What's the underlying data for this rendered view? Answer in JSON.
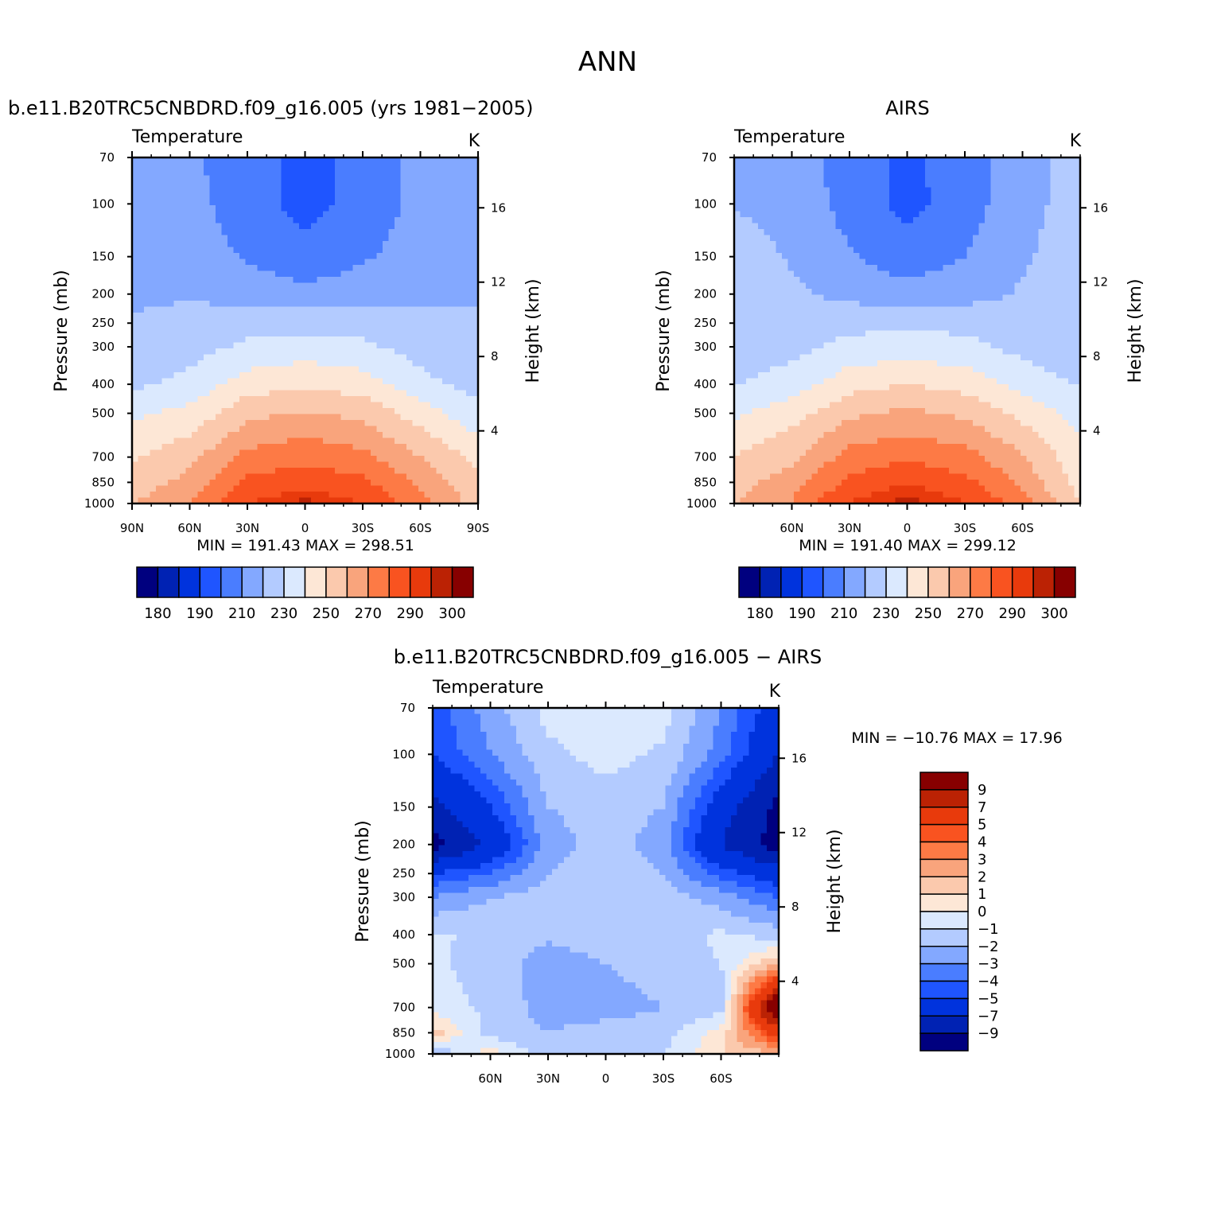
{
  "figure": {
    "title": "ANN"
  },
  "panels": [
    {
      "id": "model",
      "subtitle": "b.e11.B20TRC5CNBDRD.f09_g16.005 (yrs 1981−2005)",
      "variable": "Temperature",
      "units": "K",
      "ylabel": "Pressure (mb)",
      "y2label": "Height (km)",
      "xticks": [
        "90N",
        "60N",
        "30N",
        "0",
        "30S",
        "60S",
        "90S"
      ],
      "pticks": [
        "70",
        "100",
        "150",
        "200",
        "250",
        "300",
        "400",
        "500",
        "700",
        "850",
        "1000"
      ],
      "hticks": [
        "16",
        "12",
        "8",
        "4"
      ],
      "stats": "MIN = 191.43 MAX = 298.51",
      "colorbar_labels": [
        "180",
        "190",
        "210",
        "230",
        "250",
        "270",
        "290",
        "300"
      ]
    },
    {
      "id": "obs",
      "subtitle": "AIRS",
      "variable": "Temperature",
      "units": "K",
      "ylabel": "Pressure (mb)",
      "y2label": "Height (km)",
      "xticks": [
        "60N",
        "30N",
        "0",
        "30S",
        "60S"
      ],
      "pticks": [
        "70",
        "100",
        "150",
        "200",
        "250",
        "300",
        "400",
        "500",
        "700",
        "850",
        "1000"
      ],
      "hticks": [
        "16",
        "12",
        "8",
        "4"
      ],
      "stats": "MIN = 191.40 MAX = 299.12",
      "colorbar_labels": [
        "180",
        "190",
        "210",
        "230",
        "250",
        "270",
        "290",
        "300"
      ]
    },
    {
      "id": "diff",
      "subtitle": "b.e11.B20TRC5CNBDRD.f09_g16.005 − AIRS",
      "variable": "Temperature",
      "units": "K",
      "ylabel": "Pressure (mb)",
      "y2label": "Height (km)",
      "xticks": [
        "60N",
        "30N",
        "0",
        "30S",
        "60S"
      ],
      "pticks": [
        "70",
        "100",
        "150",
        "200",
        "250",
        "300",
        "400",
        "500",
        "700",
        "850",
        "1000"
      ],
      "hticks": [
        "16",
        "12",
        "8",
        "4"
      ],
      "stats": "MIN = −10.76 MAX = 17.96",
      "colorbar_labels": [
        "9",
        "7",
        "5",
        "4",
        "3",
        "2",
        "1",
        "0",
        "−1",
        "−2",
        "−3",
        "−4",
        "−5",
        "−7",
        "−9"
      ]
    }
  ],
  "colors": {
    "abs_scale": [
      "#00007f",
      "#0022b3",
      "#0033dd",
      "#1f55ff",
      "#4a7dff",
      "#83a8ff",
      "#b3cbff",
      "#dbe9fe",
      "#fde7d6",
      "#fbc9ad",
      "#f9a47c",
      "#fd7a45",
      "#f95320",
      "#e83a0c",
      "#bb2204",
      "#870000"
    ],
    "diff_scale": [
      "#870000",
      "#bb2204",
      "#e83a0c",
      "#f95320",
      "#fd7a45",
      "#f9a47c",
      "#fbc9ad",
      "#fde7d6",
      "#dbe9fe",
      "#b3cbff",
      "#83a8ff",
      "#4a7dff",
      "#1f55ff",
      "#0033dd",
      "#0022b3",
      "#00007f"
    ]
  },
  "chart_data": [
    {
      "type": "heatmap",
      "title": "b.e11.B20TRC5CNBDRD.f09_g16.005 (yrs 1981−2005)",
      "variable": "Temperature",
      "units": "K",
      "x_axis": "latitude, 90N to 90S",
      "y_axis": "pressure (mb), log scale, 70 to 1000",
      "y2_axis": "height (km)",
      "min": 191.43,
      "max": 298.51,
      "contour_levels": [
        180,
        185,
        190,
        200,
        210,
        220,
        230,
        240,
        250,
        260,
        270,
        280,
        290,
        295,
        300
      ],
      "lat": [
        90,
        60,
        30,
        0,
        -30,
        -60,
        -90
      ],
      "pressure": [
        70,
        100,
        150,
        200,
        250,
        300,
        400,
        500,
        700,
        850,
        1000
      ],
      "values": [
        [
          215,
          212,
          204,
          197,
          203,
          213,
          218
        ],
        [
          215,
          213,
          205,
          196,
          204,
          213,
          218
        ],
        [
          217,
          215,
          209,
          203,
          209,
          214,
          219
        ],
        [
          218,
          219,
          216,
          213,
          215,
          217,
          220
        ],
        [
          221,
          223,
          226,
          227,
          226,
          223,
          220
        ],
        [
          223,
          226,
          232,
          234,
          232,
          226,
          221
        ],
        [
          228,
          233,
          245,
          249,
          245,
          233,
          226
        ],
        [
          238,
          243,
          257,
          261,
          257,
          245,
          233
        ],
        [
          249,
          257,
          273,
          277,
          273,
          260,
          247
        ],
        [
          255,
          263,
          282,
          287,
          282,
          268,
          252
        ],
        [
          259,
          270,
          290,
          297,
          290,
          274,
          255
        ]
      ]
    },
    {
      "type": "heatmap",
      "title": "AIRS",
      "variable": "Temperature",
      "units": "K",
      "x_axis": "latitude, 90N to 90S",
      "y_axis": "pressure (mb), log scale, 70 to 1000",
      "y2_axis": "height (km)",
      "min": 191.4,
      "max": 299.12,
      "contour_levels": [
        180,
        185,
        190,
        200,
        210,
        220,
        230,
        240,
        250,
        260,
        270,
        280,
        290,
        295,
        300
      ],
      "lat": [
        90,
        60,
        30,
        0,
        -30,
        -60,
        -90
      ],
      "pressure": [
        70,
        100,
        150,
        200,
        250,
        300,
        400,
        500,
        700,
        850,
        1000
      ],
      "values": [
        [
          218,
          216,
          205,
          198,
          204,
          216,
          224
        ],
        [
          219,
          217,
          206,
          197,
          205,
          217,
          224
        ],
        [
          225,
          219,
          211,
          204,
          210,
          219,
          224
        ],
        [
          226,
          222,
          217,
          214,
          216,
          221,
          222
        ],
        [
          223,
          224,
          227,
          228,
          227,
          223,
          221
        ],
        [
          223,
          227,
          233,
          235,
          233,
          227,
          223
        ],
        [
          229,
          235,
          246,
          250,
          246,
          236,
          229
        ],
        [
          238,
          246,
          258,
          262,
          258,
          247,
          236
        ],
        [
          250,
          258,
          274,
          278,
          274,
          261,
          243
        ],
        [
          256,
          265,
          283,
          289,
          283,
          267,
          246
        ],
        [
          260,
          271,
          291,
          298,
          291,
          275,
          250
        ]
      ]
    },
    {
      "type": "heatmap",
      "title": "b.e11.B20TRC5CNBDRD.f09_g16.005 − AIRS",
      "variable": "Temperature",
      "units": "K",
      "x_axis": "latitude, 90N to 90S",
      "y_axis": "pressure (mb), log scale, 70 to 1000",
      "y2_axis": "height (km)",
      "min": -10.76,
      "max": 17.96,
      "contour_levels": [
        -9,
        -7,
        -5,
        -4,
        -3,
        -2,
        -1,
        0,
        1,
        2,
        3,
        4,
        5,
        7,
        9
      ],
      "lat": [
        90,
        60,
        30,
        0,
        -30,
        -60,
        -90
      ],
      "pressure": [
        70,
        100,
        150,
        200,
        250,
        300,
        400,
        500,
        700,
        850,
        1000
      ],
      "values": [
        [
          -4.5,
          -2.5,
          -0.6,
          -0.5,
          -0.5,
          -3.0,
          -6.0
        ],
        [
          -5.0,
          -3.0,
          -1.3,
          -0.6,
          -1.2,
          -3.5,
          -7.0
        ],
        [
          -7.5,
          -5.0,
          -2.0,
          -1.5,
          -2.0,
          -6.0,
          -9.5
        ],
        [
          -10.0,
          -6.5,
          -2.5,
          -1.5,
          -2.5,
          -7.0,
          -10.0
        ],
        [
          -5.0,
          -4.0,
          -2.0,
          -1.5,
          -2.0,
          -4.5,
          -6.0
        ],
        [
          -3.0,
          -2.0,
          -1.5,
          -1.3,
          -1.5,
          -2.5,
          -4.0
        ],
        [
          -0.8,
          -1.3,
          -1.8,
          -1.5,
          -1.5,
          -0.8,
          -1.5
        ],
        [
          -0.8,
          -1.5,
          -2.5,
          -2.0,
          -1.5,
          -1.0,
          2.0
        ],
        [
          -0.5,
          -1.2,
          -2.5,
          -2.5,
          -2.0,
          -1.5,
          12.0
        ],
        [
          1.5,
          -1.5,
          -2.0,
          -1.5,
          -1.5,
          0.5,
          6.0
        ],
        [
          -2.0,
          0.5,
          -1.5,
          -1.0,
          -1.0,
          1.0,
          2.0
        ]
      ]
    }
  ]
}
